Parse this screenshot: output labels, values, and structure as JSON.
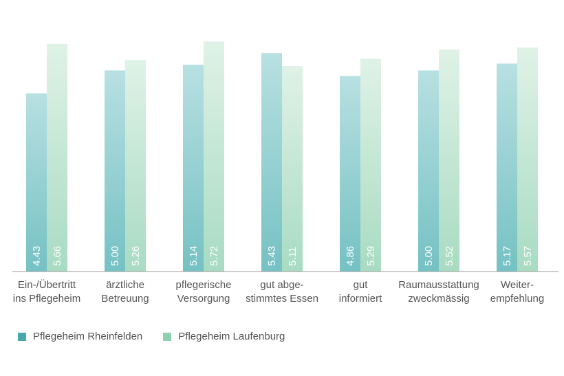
{
  "chart_data": {
    "type": "bar",
    "title": "",
    "xlabel": "",
    "ylabel": "",
    "ylim": [
      0,
      5.93
    ],
    "grid": false,
    "legend_position": "bottom-left",
    "categories": [
      [
        "Ein-/Übertritt",
        "ins Pflegeheim"
      ],
      [
        "ärztliche",
        "Betreuung"
      ],
      [
        "pflegerische",
        "Versorgung"
      ],
      [
        "gut abge-",
        "stimmtes Essen"
      ],
      [
        "gut",
        "informiert"
      ],
      [
        "Raumausstattung",
        "zweckmässig"
      ],
      [
        "Weiter-",
        "empfehlung"
      ]
    ],
    "series": [
      {
        "name": "Pflegeheim Rheinfelden",
        "color_top": "#b8e0e2",
        "color_bottom": "#75c1c3",
        "swatch_color": "#48a9ad",
        "values": [
          4.43,
          5.0,
          5.14,
          5.43,
          4.86,
          5.0,
          5.17
        ],
        "labels": [
          "4.43",
          "5.00",
          "5.14",
          "5.43",
          "4.86",
          "5.00",
          "5.17"
        ]
      },
      {
        "name": "Pflegeheim Laufenburg",
        "color_top": "#dff2e7",
        "color_bottom": "#a8dbc2",
        "swatch_color": "#8fd1af",
        "values": [
          5.66,
          5.26,
          5.72,
          5.11,
          5.29,
          5.52,
          5.57
        ],
        "labels": [
          "5.66",
          "5.26",
          "5.72",
          "5.11",
          "5.29",
          "5.52",
          "5.57"
        ]
      }
    ]
  }
}
